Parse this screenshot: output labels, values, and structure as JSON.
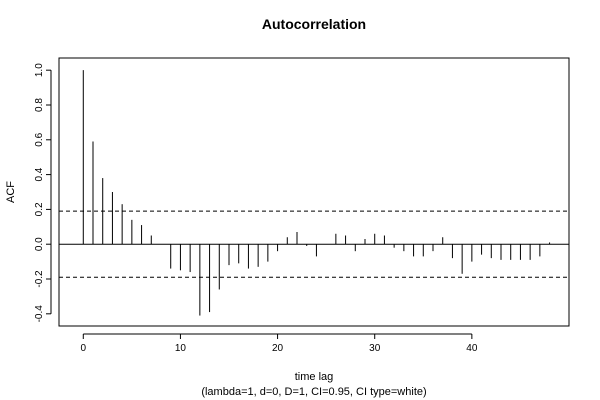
{
  "chart_data": {
    "type": "bar",
    "title": "Autocorrelation",
    "xlabel": "time lag",
    "subtitle": "(lambda=1, d=0, D=1, CI=0.95, CI type=white)",
    "ylabel": "ACF",
    "xlim": [
      -2.5,
      50
    ],
    "ylim": [
      -0.47,
      1.07
    ],
    "x_ticks": [
      0,
      10,
      20,
      30,
      40
    ],
    "y_ticks": [
      -0.4,
      -0.2,
      0.0,
      0.2,
      0.4,
      0.6,
      0.8,
      1.0
    ],
    "y_tick_labels": [
      "-0.4",
      "-0.2",
      "0.0",
      "0.2",
      "0.4",
      "0.6",
      "0.8",
      "1.0"
    ],
    "confidence_bands": [
      0.19,
      -0.19
    ],
    "lags": [
      0,
      1,
      2,
      3,
      4,
      5,
      6,
      7,
      8,
      9,
      10,
      11,
      12,
      13,
      14,
      15,
      16,
      17,
      18,
      19,
      20,
      21,
      22,
      23,
      24,
      25,
      26,
      27,
      28,
      29,
      30,
      31,
      32,
      33,
      34,
      35,
      36,
      37,
      38,
      39,
      40,
      41,
      42,
      43,
      44,
      45,
      46,
      47,
      48
    ],
    "values": [
      1.0,
      0.59,
      0.38,
      0.3,
      0.23,
      0.14,
      0.11,
      0.05,
      0.0,
      -0.14,
      -0.15,
      -0.16,
      -0.41,
      -0.39,
      -0.26,
      -0.12,
      -0.11,
      -0.14,
      -0.13,
      -0.1,
      -0.04,
      0.04,
      0.07,
      -0.01,
      -0.07,
      0.0,
      0.06,
      0.05,
      -0.04,
      0.03,
      0.06,
      0.05,
      -0.02,
      -0.04,
      -0.07,
      -0.07,
      -0.04,
      0.04,
      -0.08,
      -0.17,
      -0.1,
      -0.06,
      -0.08,
      -0.09,
      -0.09,
      -0.09,
      -0.09,
      -0.07,
      0.01
    ]
  }
}
